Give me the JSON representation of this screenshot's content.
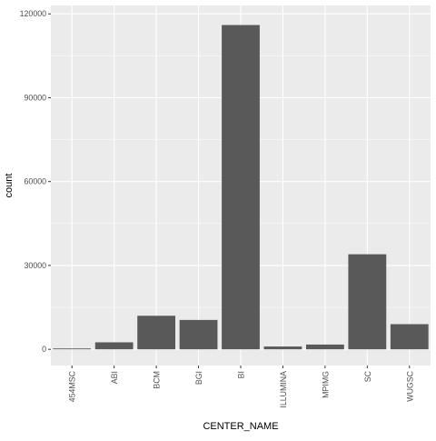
{
  "chart_data": {
    "type": "bar",
    "categories": [
      "454MSC",
      "ABI",
      "BCM",
      "BGI",
      "BI",
      "ILLUMINA",
      "MPIMG",
      "SC",
      "WUGSC"
    ],
    "values": [
      300,
      2500,
      12000,
      10500,
      116000,
      1000,
      1700,
      34000,
      9000
    ],
    "xlabel": "CENTER_NAME",
    "ylabel": "count",
    "y_ticks": [
      0,
      30000,
      60000,
      90000,
      120000
    ],
    "y_tick_labels": [
      "0",
      "30000",
      "60000",
      "90000",
      "120000"
    ],
    "ylim": [
      -5800,
      123000
    ],
    "grid": true,
    "colors": {
      "panel_bg": "#EBEBEB",
      "grid_major": "#FFFFFF",
      "bar_fill": "#595959",
      "tick_text": "#4D4D4D",
      "title_text": "#000000"
    }
  }
}
